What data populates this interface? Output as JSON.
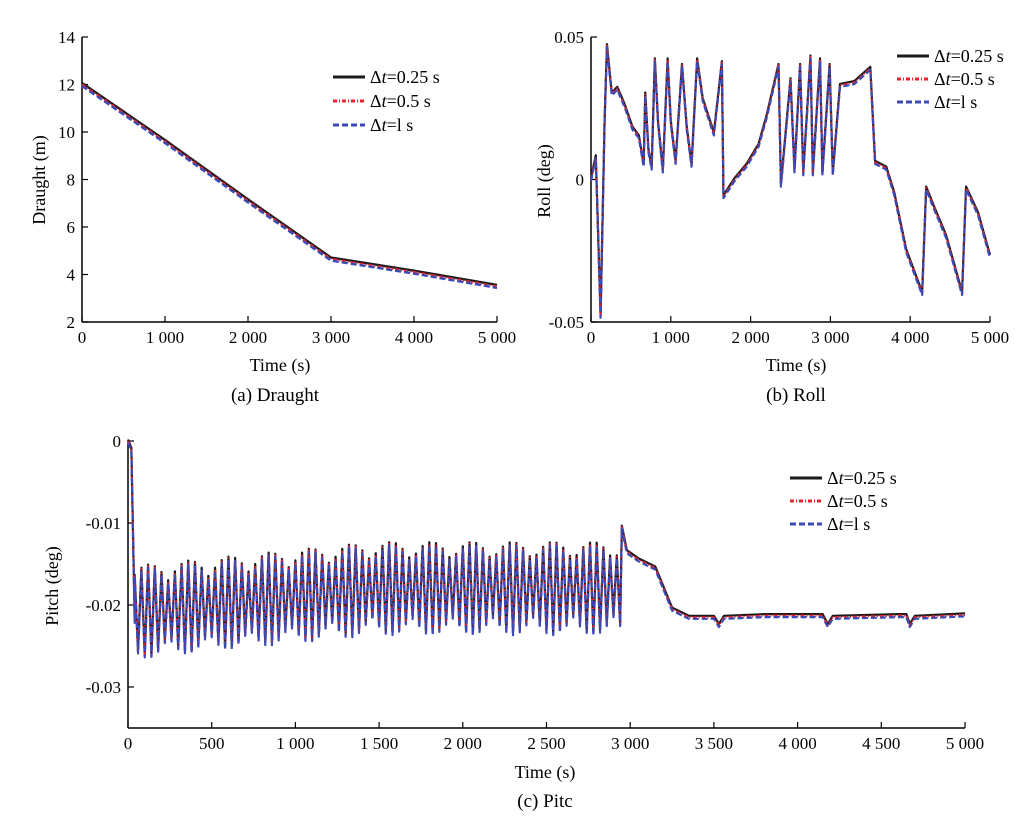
{
  "legend": [
    {
      "delta": "Δ",
      "var": "t",
      "rest": "=0.25 s",
      "color": "#1a1a1a",
      "dash": "",
      "width": 3
    },
    {
      "delta": "Δ",
      "var": "t",
      "rest": "=0.5 s",
      "color": "#e8222e",
      "dash": "4 2 1 2",
      "width": 3
    },
    {
      "delta": "Δ",
      "var": "t",
      "rest": "=l s",
      "color": "#3b4ab8",
      "dash": "6 3",
      "width": 3
    }
  ],
  "chart_data": [
    {
      "type": "line",
      "caption": "(a) Draught",
      "xlabel": "Time (s)",
      "ylabel": "Draught (m)",
      "xlim": [
        0,
        5000
      ],
      "ylim": [
        2,
        14
      ],
      "xticks": [
        0,
        1000,
        2000,
        3000,
        4000,
        5000
      ],
      "xtick_labels": [
        "0",
        "1 000",
        "2 000",
        "3 000",
        "4 000",
        "5 000"
      ],
      "yticks": [
        2,
        4,
        6,
        8,
        10,
        12,
        14
      ],
      "ytick_labels": [
        "2",
        "4",
        "6",
        "8",
        "10",
        "12",
        "14"
      ],
      "series_points": [
        [
          0,
          12.0
        ],
        [
          1000,
          9.6
        ],
        [
          2000,
          7.1
        ],
        [
          3000,
          4.65
        ],
        [
          4000,
          4.1
        ],
        [
          5000,
          3.5
        ]
      ]
    },
    {
      "type": "line",
      "caption": "(b) Roll",
      "xlabel": "Time (s)",
      "ylabel": "Roll (deg)",
      "xlim": [
        0,
        5000
      ],
      "ylim": [
        -0.05,
        0.05
      ],
      "xticks": [
        0,
        1000,
        2000,
        3000,
        4000,
        5000
      ],
      "xtick_labels": [
        "0",
        "1 000",
        "2 000",
        "3 000",
        "4 000",
        "5 000"
      ],
      "yticks": [
        -0.05,
        0,
        0.05
      ],
      "ytick_labels": [
        "-0.05",
        "0",
        "0.05"
      ],
      "series_points": [
        [
          0,
          0
        ],
        [
          60,
          0.008
        ],
        [
          120,
          -0.048
        ],
        [
          170,
          0.02
        ],
        [
          200,
          0.047
        ],
        [
          260,
          0.03
        ],
        [
          330,
          0.032
        ],
        [
          420,
          0.026
        ],
        [
          520,
          0.018
        ],
        [
          600,
          0.015
        ],
        [
          660,
          0.005
        ],
        [
          680,
          0.03
        ],
        [
          720,
          0.01
        ],
        [
          760,
          0.004
        ],
        [
          800,
          0.042
        ],
        [
          840,
          0.02
        ],
        [
          900,
          0.003
        ],
        [
          960,
          0.042
        ],
        [
          1000,
          0.02
        ],
        [
          1060,
          0.006
        ],
        [
          1140,
          0.04
        ],
        [
          1200,
          0.018
        ],
        [
          1260,
          0.005
        ],
        [
          1330,
          0.042
        ],
        [
          1400,
          0.028
        ],
        [
          1540,
          0.016
        ],
        [
          1640,
          0.041
        ],
        [
          1660,
          -0.006
        ],
        [
          1800,
          0.0
        ],
        [
          1950,
          0.005
        ],
        [
          2100,
          0.012
        ],
        [
          2200,
          0.022
        ],
        [
          2350,
          0.04
        ],
        [
          2380,
          -0.002
        ],
        [
          2500,
          0.035
        ],
        [
          2550,
          0.003
        ],
        [
          2620,
          0.04
        ],
        [
          2660,
          0.002
        ],
        [
          2750,
          0.043
        ],
        [
          2780,
          0.002
        ],
        [
          2870,
          0.042
        ],
        [
          2900,
          0.002
        ],
        [
          2990,
          0.04
        ],
        [
          3030,
          0.002
        ],
        [
          3120,
          0.033
        ],
        [
          3300,
          0.034
        ],
        [
          3500,
          0.039
        ],
        [
          3560,
          0.006
        ],
        [
          3700,
          0.004
        ],
        [
          3800,
          -0.005
        ],
        [
          3950,
          -0.025
        ],
        [
          4150,
          -0.04
        ],
        [
          4200,
          -0.003
        ],
        [
          4300,
          -0.01
        ],
        [
          4450,
          -0.02
        ],
        [
          4650,
          -0.04
        ],
        [
          4700,
          -0.003
        ],
        [
          4850,
          -0.012
        ],
        [
          5000,
          -0.027
        ]
      ]
    },
    {
      "type": "line",
      "caption": "(c) Pitc",
      "xlabel": "Time (s)",
      "ylabel": "Pitch (deg)",
      "xlim": [
        0,
        5000
      ],
      "ylim": [
        -0.035,
        0
      ],
      "xticks": [
        0,
        500,
        1000,
        1500,
        2000,
        2500,
        3000,
        3500,
        4000,
        4500,
        5000
      ],
      "xtick_labels": [
        "0",
        "500",
        "1 000",
        "1 500",
        "2 000",
        "2 500",
        "3 000",
        "3 500",
        "4 000",
        "4 500",
        "5 000"
      ],
      "yticks": [
        0,
        -0.01,
        -0.02,
        -0.03
      ],
      "ytick_labels": [
        "0",
        "-0.01",
        "-0.02",
        "-0.03"
      ],
      "osc_start": 0,
      "osc_end": 2950,
      "osc_period": 40,
      "osc_mean_start": -0.021,
      "osc_mean_mid": -0.018,
      "osc_mean_end": -0.018,
      "osc_amp": 0.0055,
      "tail_points": [
        [
          2950,
          -0.0105
        ],
        [
          2980,
          -0.0135
        ],
        [
          3050,
          -0.0145
        ],
        [
          3100,
          -0.015
        ],
        [
          3150,
          -0.0155
        ],
        [
          3200,
          -0.018
        ],
        [
          3250,
          -0.0205
        ],
        [
          3350,
          -0.0215
        ],
        [
          3500,
          -0.0215
        ],
        [
          3530,
          -0.0225
        ],
        [
          3560,
          -0.0215
        ],
        [
          3800,
          -0.0213
        ],
        [
          4150,
          -0.0213
        ],
        [
          4180,
          -0.0225
        ],
        [
          4210,
          -0.0215
        ],
        [
          4600,
          -0.0213
        ],
        [
          4650,
          -0.0213
        ],
        [
          4670,
          -0.0225
        ],
        [
          4700,
          -0.0215
        ],
        [
          5000,
          -0.0212
        ]
      ]
    }
  ]
}
